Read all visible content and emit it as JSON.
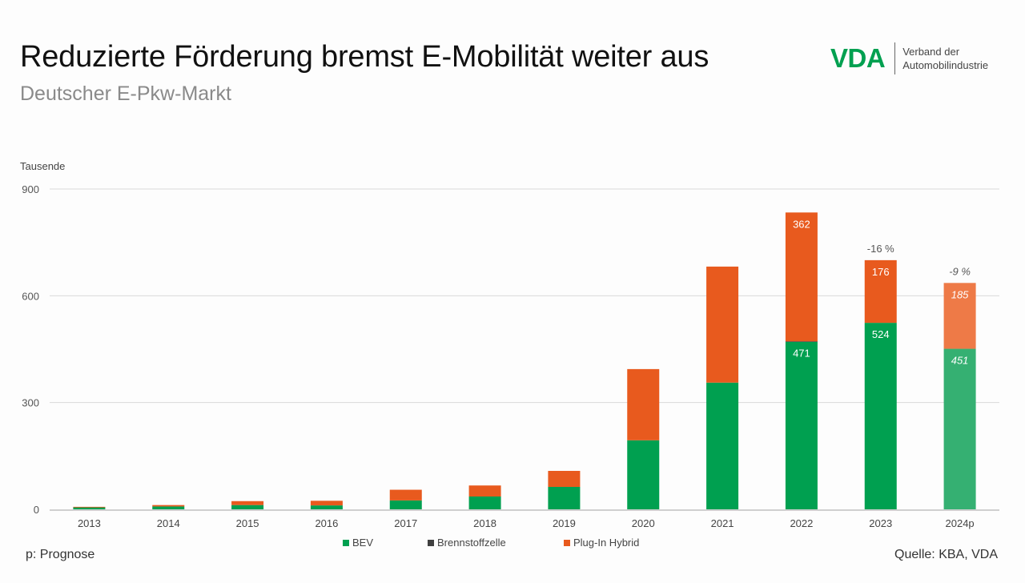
{
  "header": {
    "title": "Reduzierte Förderung bremst E-Mobilität weiter aus",
    "subtitle": "Deutscher E-Pkw-Markt"
  },
  "logo": {
    "mark": "VDA",
    "line1": "Verband der",
    "line2": "Automobilindustrie",
    "color": "#00a050"
  },
  "footer": {
    "note": "p: Prognose",
    "source": "Quelle: KBA, VDA"
  },
  "chart_data": {
    "type": "bar",
    "stacked": true,
    "title": "Deutscher E-Pkw-Markt",
    "ylabel": "Tausende",
    "xlabel": "",
    "ylim": [
      0,
      900
    ],
    "yticks": [
      0,
      300,
      600,
      900
    ],
    "grid": true,
    "legend_position": "bottom",
    "categories": [
      "2013",
      "2014",
      "2015",
      "2016",
      "2017",
      "2018",
      "2019",
      "2020",
      "2021",
      "2022",
      "2023",
      "2024p"
    ],
    "series": [
      {
        "name": "BEV",
        "color": "#00a050",
        "values": [
          6,
          8,
          12,
          11,
          25,
          36,
          63,
          194,
          356,
          471,
          524,
          451
        ],
        "labels": [
          "",
          "",
          "",
          "",
          "",
          "",
          "",
          "",
          "",
          "471",
          "524",
          "451"
        ]
      },
      {
        "name": "Brennstoffzelle",
        "color": "#404040",
        "values": [
          0,
          0,
          0,
          0,
          0,
          0,
          0,
          0,
          0,
          1,
          0,
          0
        ],
        "labels": [
          "",
          "",
          "",
          "",
          "",
          "",
          "",
          "",
          "",
          "",
          "",
          ""
        ]
      },
      {
        "name": "Plug-In Hybrid",
        "color": "#e85a1e",
        "values": [
          1,
          4,
          11,
          13,
          30,
          31,
          45,
          200,
          326,
          362,
          176,
          185
        ],
        "labels": [
          "",
          "",
          "",
          "",
          "",
          "",
          "",
          "",
          "",
          "362",
          "176",
          "185"
        ]
      }
    ],
    "forecast_category": "2024p",
    "forecast_colors": {
      "BEV": "#35b072",
      "Plug-In Hybrid": "#ee7a47"
    },
    "annotations": [
      {
        "category": "2023",
        "text": "-16 %"
      },
      {
        "category": "2024p",
        "text": "-9 %"
      }
    ]
  }
}
